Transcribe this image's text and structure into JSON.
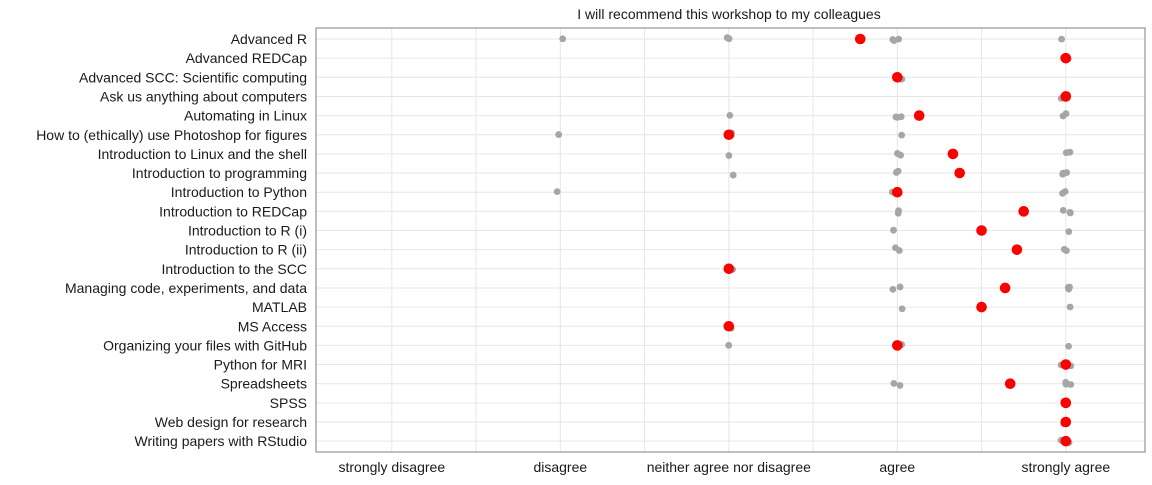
{
  "chart_data": {
    "type": "scatter",
    "title": "I will recommend this workshop to my colleagues",
    "xlabel": "",
    "ylabel": "",
    "x_categories": [
      "strongly disagree",
      "disagree",
      "neither agree nor disagree",
      "agree",
      "strongly agree"
    ],
    "x_range": [
      0.55,
      5.47
    ],
    "grid": true,
    "legend": "none",
    "colors": {
      "individual": "#a6a6a6",
      "mean": "#ff0000",
      "grid": "#e6e6e6",
      "border": "#7f7f7f",
      "text": "#1a1a1a"
    },
    "series": [
      {
        "values": [
          {
            "workshop": "Advanced R",
            "individual": [
              2,
              3,
              3,
              4,
              4,
              4,
              5
            ],
            "mean": 3.78
          },
          {
            "workshop": "Advanced REDCap",
            "individual": [
              5,
              5,
              5
            ],
            "mean": 5.0
          },
          {
            "workshop": "Advanced SCC: Scientific computing",
            "individual": [
              4,
              4,
              4
            ],
            "mean": 4.0
          },
          {
            "workshop": "Ask us anything about computers",
            "individual": [
              5,
              5
            ],
            "mean": 5.0
          },
          {
            "workshop": "Automating in Linux",
            "individual": [
              3,
              4,
              4,
              4,
              5,
              5
            ],
            "mean": 4.13
          },
          {
            "workshop": "How to (ethically) use Photoshop for figures",
            "individual": [
              2,
              3,
              3,
              4
            ],
            "mean": 3.0
          },
          {
            "workshop": "Introduction to Linux and the shell",
            "individual": [
              3,
              4,
              4,
              5,
              5
            ],
            "mean": 4.33
          },
          {
            "workshop": "Introduction to programming",
            "individual": [
              3,
              4,
              4,
              5,
              5,
              5
            ],
            "mean": 4.37
          },
          {
            "workshop": "Introduction to Python",
            "individual": [
              2,
              4,
              4,
              5,
              5
            ],
            "mean": 4.0
          },
          {
            "workshop": "Introduction to REDCap",
            "individual": [
              4,
              4,
              5,
              5,
              5,
              5
            ],
            "mean": 4.75
          },
          {
            "workshop": "Introduction to R (i)",
            "individual": [
              4,
              5
            ],
            "mean": 4.5
          },
          {
            "workshop": "Introduction to R (ii)",
            "individual": [
              4,
              4,
              5,
              5
            ],
            "mean": 4.71
          },
          {
            "workshop": "Introduction to the SCC",
            "individual": [
              3,
              3
            ],
            "mean": 3.0
          },
          {
            "workshop": "Managing code, experiments, and data",
            "individual": [
              4,
              4,
              5,
              5,
              5,
              5
            ],
            "mean": 4.64
          },
          {
            "workshop": "MATLAB",
            "individual": [
              4,
              5
            ],
            "mean": 4.5
          },
          {
            "workshop": "MS Access",
            "individual": [
              3
            ],
            "mean": 3.0
          },
          {
            "workshop": "Organizing your files with GitHub",
            "individual": [
              3,
              4,
              4,
              5
            ],
            "mean": 4.0
          },
          {
            "workshop": "Python for MRI",
            "individual": [
              5,
              5
            ],
            "mean": 5.0
          },
          {
            "workshop": "Spreadsheets",
            "individual": [
              4,
              4,
              5,
              5,
              5
            ],
            "mean": 4.67
          },
          {
            "workshop": "SPSS",
            "individual": [
              5,
              5
            ],
            "mean": 5.0
          },
          {
            "workshop": "Web design for research",
            "individual": [
              5,
              5
            ],
            "mean": 5.0
          },
          {
            "workshop": "Writing papers with RStudio",
            "individual": [
              5,
              5,
              5
            ],
            "mean": 5.0
          }
        ]
      }
    ]
  }
}
